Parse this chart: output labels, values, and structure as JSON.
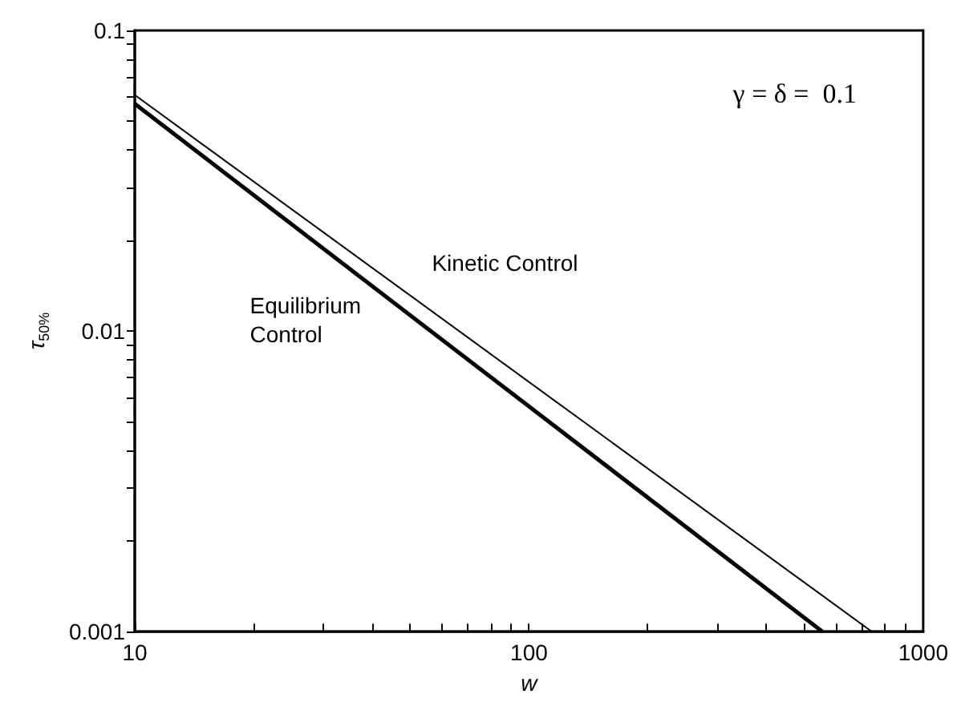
{
  "chart_data": {
    "type": "line",
    "xlabel": "w",
    "ylabel": "τ$_{50%}$",
    "log": "xy",
    "grid": false,
    "legend": false,
    "marker": "none",
    "line_style": "solid",
    "xlim": [
      10,
      1000
    ],
    "ylim": [
      0.001,
      0.1
    ],
    "xticks": [
      10,
      {
        "value": 20,
        "label": null
      },
      {
        "value": 30,
        "label": null
      },
      {
        "value": 40,
        "label": null
      },
      {
        "value": 50,
        "label": null
      },
      {
        "value": 60,
        "label": null
      },
      {
        "value": 70,
        "label": null
      },
      {
        "value": 80,
        "label": null
      },
      {
        "value": 90,
        "label": null
      },
      100,
      {
        "value": 200,
        "label": null
      },
      {
        "value": 300,
        "label": null
      },
      {
        "value": 400,
        "label": null
      },
      {
        "value": 500,
        "label": null
      },
      {
        "value": 600,
        "label": null
      },
      {
        "value": 700,
        "label": null
      },
      {
        "value": 800,
        "label": null
      },
      {
        "value": 900,
        "label": null
      },
      1000
    ],
    "yticks": [
      0.001,
      {
        "value": 0.002,
        "label": null
      },
      {
        "value": 0.003,
        "label": null
      },
      {
        "value": 0.004,
        "label": null
      },
      {
        "value": 0.005,
        "label": null
      },
      {
        "value": 0.006,
        "label": null
      },
      {
        "value": 0.007,
        "label": null
      },
      {
        "value": 0.008,
        "label": null
      },
      {
        "value": 0.009,
        "label": null
      },
      0.01,
      {
        "value": 0.02,
        "label": null
      },
      {
        "value": 0.03,
        "label": null
      },
      {
        "value": 0.04,
        "label": null
      },
      {
        "value": 0.05,
        "label": null
      },
      {
        "value": 0.06,
        "label": null
      },
      {
        "value": 0.07,
        "label": null
      },
      {
        "value": 0.08,
        "label": null
      },
      {
        "value": 0.09,
        "label": null
      },
      0.1
    ],
    "series": [
      {
        "name": "Kinetic Control",
        "color": "#000000",
        "x": [
          10,
          741
        ],
        "values": [
          0.061,
          0.001
        ]
      },
      {
        "name": "Equilibrium\nControl",
        "color": "#000000",
        "x": [
          10,
          555
        ],
        "values": [
          0.057,
          0.001
        ]
      }
    ],
    "annotations": [
      "γ = δ =  0.1"
    ]
  }
}
